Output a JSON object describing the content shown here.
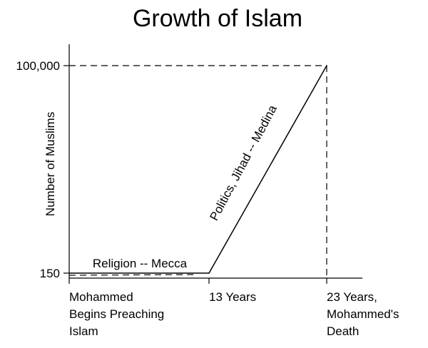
{
  "chart_data": {
    "type": "line",
    "title": "Growth of Islam",
    "ylabel": "Number of Muslims",
    "xlabel": "",
    "x_ticks": [
      {
        "lines": [
          "Mohammed",
          "Begins Preaching",
          "Islam"
        ]
      },
      {
        "lines": [
          "13 Years"
        ]
      },
      {
        "lines": [
          "23 Years,",
          "Mohammed's",
          "Death"
        ]
      }
    ],
    "y_ticks": [
      "150",
      "100,000"
    ],
    "series": [
      {
        "points": [
          {
            "x": 0,
            "y": 150
          },
          {
            "x": 13,
            "y": 150
          },
          {
            "x": 23,
            "y": 100000
          }
        ]
      }
    ],
    "xlim": [
      0,
      23
    ],
    "ylim": [
      150,
      100000
    ],
    "annotations": [
      "Religion -- Mecca",
      "Politics, Jihad -- Medina"
    ],
    "reference_lines": [
      "dashed horizontal at 100,000",
      "dashed vertical at 23 Years",
      "dashed horizontal near 150"
    ],
    "grid": false,
    "legend": "none"
  }
}
